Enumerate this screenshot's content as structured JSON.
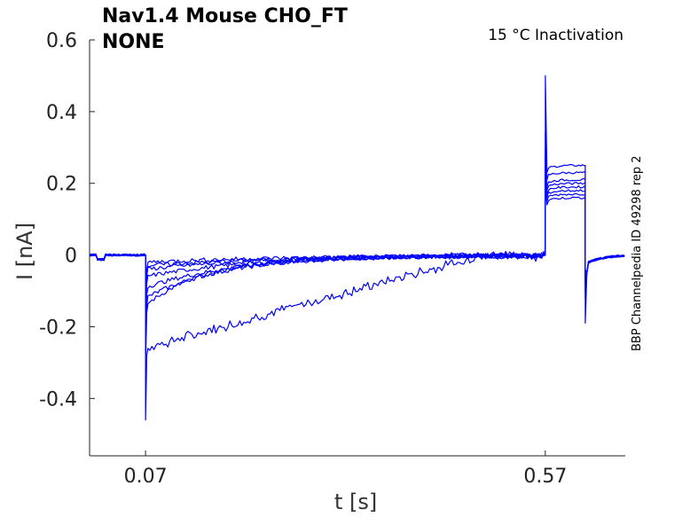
{
  "chart_data": {
    "type": "line",
    "title_line1": "Nav1.4  Mouse  CHO_FT",
    "title_line2": "NONE",
    "annotation": "15 °C  Inactivation",
    "side_caption": "BBP Channelpedia ID 49298 rep 2",
    "xlabel": "t [s]",
    "ylabel": "I [nA]",
    "xlim": [
      0.0,
      0.67
    ],
    "ylim": [
      -0.56,
      0.6
    ],
    "xticks": [
      0.07,
      0.57
    ],
    "xtick_labels": [
      "0.07",
      "0.57"
    ],
    "yticks": [
      -0.4,
      -0.2,
      0,
      0.2,
      0.4,
      0.6
    ],
    "ytick_labels": [
      "-0.4",
      "-0.2",
      "0",
      "0.2",
      "0.4",
      "0.6"
    ],
    "grid": false,
    "line_color": "#0000ff",
    "series": [
      {
        "peak": -0.46,
        "plateau": -0.26,
        "step2": 0.25,
        "spike2": 0.5,
        "tail": -0.19
      },
      {
        "peak": -0.3,
        "plateau": -0.14,
        "step2": 0.23,
        "spike2": 0.34,
        "tail": -0.12
      },
      {
        "peak": -0.22,
        "plateau": -0.12,
        "step2": 0.21,
        "spike2": 0.3,
        "tail": -0.1
      },
      {
        "peak": -0.18,
        "plateau": -0.09,
        "step2": 0.2,
        "spike2": 0.28,
        "tail": -0.08
      },
      {
        "peak": -0.15,
        "plateau": -0.06,
        "step2": 0.19,
        "spike2": 0.26,
        "tail": -0.07
      },
      {
        "peak": -0.12,
        "plateau": -0.04,
        "step2": 0.18,
        "spike2": 0.24,
        "tail": -0.06
      },
      {
        "peak": -0.1,
        "plateau": -0.03,
        "step2": 0.17,
        "spike2": 0.22,
        "tail": -0.05
      },
      {
        "peak": -0.08,
        "plateau": -0.02,
        "step2": 0.16,
        "spike2": 0.2,
        "tail": -0.04
      }
    ]
  }
}
